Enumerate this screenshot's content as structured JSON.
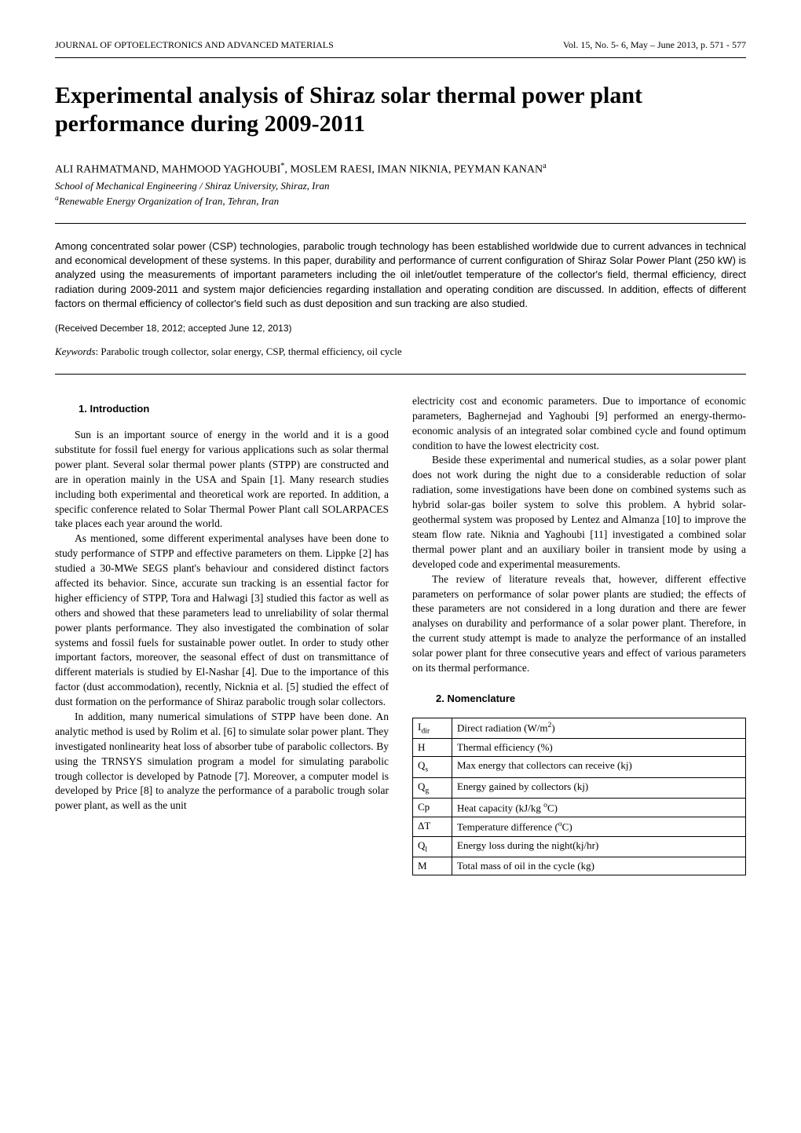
{
  "header": {
    "journal": "JOURNAL OF OPTOELECTRONICS AND ADVANCED MATERIALS",
    "issue": "Vol. 15, No. 5- 6, May – June 2013, p. 571 - 577"
  },
  "title": "Experimental analysis of Shiraz solar thermal power plant performance during 2009-2011",
  "authors_html": "ALI RAHMATMAND, MAHMOOD YAGHOUBI<span class=\"sup\">*</span>, MOSLEM RAESI, IMAN NIKNIA, PEYMAN KANAN<span class=\"sup\">a</span>",
  "affiliations": [
    "School of Mechanical Engineering / Shiraz University, Shiraz, Iran",
    "<span class=\"sup\">a</span>Renewable Energy Organization of Iran, Tehran, Iran"
  ],
  "abstract": "Among concentrated solar power (CSP) technologies, parabolic trough technology has been established worldwide due to current advances in technical and economical development of these systems. In this paper, durability and performance of current configuration of Shiraz Solar Power Plant (250 kW) is analyzed using the measurements of important parameters including the oil inlet/outlet temperature of the collector's field, thermal efficiency, direct radiation during 2009-2011 and system major deficiencies regarding installation and operating condition are discussed. In addition, effects of different factors on thermal efficiency of collector's field such as dust deposition and sun tracking are also studied.",
  "received": "(Received December 18, 2012; accepted June 12, 2013)",
  "keywords_label": "Keywords",
  "keywords": ": Parabolic trough collector, solar energy, CSP, thermal efficiency, oil cycle",
  "section_intro": "1. Introduction",
  "left_paragraphs": [
    "Sun is an important source of energy in the world and it is a good substitute for fossil fuel energy for various applications such as solar thermal power plant. Several solar thermal power plants (STPP) are constructed and are in operation mainly in the USA and Spain [1]. Many research studies including both experimental and theoretical work are reported. In addition, a specific conference related to Solar Thermal Power Plant call SOLARPACES take places each year around the world.",
    "As mentioned, some different experimental analyses have been done to study performance of STPP and effective parameters on them. Lippke [2] has studied a 30-MWe SEGS plant's behaviour and considered distinct factors affected its behavior. Since, accurate sun tracking is an essential factor for higher efficiency of STPP, Tora and Halwagi [3] studied this factor as well as others and showed that these parameters lead to unreliability of solar thermal power plants performance. They also investigated the combination of solar systems and fossil fuels for sustainable power outlet. In order to study other important factors, moreover, the seasonal effect of dust on transmittance of different materials is studied by El-Nashar [4]. Due to the importance of this factor (dust accommodation), recently, Nicknia et al. [5] studied the effect of dust formation on the performance of Shiraz parabolic trough solar collectors.",
    "In addition, many numerical simulations of STPP have been done. An analytic method is used by Rolim et al. [6] to simulate solar power plant. They investigated nonlinearity heat loss of absorber tube of parabolic collectors. By using the TRNSYS simulation program a model for simulating parabolic trough collector is developed by Patnode [7]. Moreover, a computer model is developed by Price [8] to analyze the performance of a parabolic trough solar power plant, as well as the unit"
  ],
  "right_paragraphs": [
    "electricity cost and economic parameters. Due to importance of economic parameters, Baghernejad and Yaghoubi [9] performed an energy-thermo-economic analysis of an integrated solar combined cycle and found optimum condition to have the lowest electricity cost.",
    "Beside these experimental and numerical studies, as a solar power plant does not work during the night due to a considerable reduction of solar radiation, some investigations have been done on combined systems such as hybrid solar-gas boiler system to solve this problem. A hybrid solar-geothermal system was proposed by Lentez and Almanza [10] to improve the steam flow rate. Niknia and Yaghoubi [11] investigated a combined solar thermal power plant and an auxiliary boiler in transient mode by using a developed code and experimental measurements.",
    "The review of literature reveals that, however, different effective parameters on performance of solar power plants are studied; the effects of these parameters are not considered in a long duration and there are fewer analyses on durability and performance of a solar power plant. Therefore, in the current study attempt is made to analyze the performance of an installed solar power plant for three consecutive years and effect of various parameters on its thermal performance."
  ],
  "section_nomenclature": "2. Nomenclature",
  "nomenclature": {
    "columns": [
      "symbol",
      "description"
    ],
    "rows": [
      [
        "I<span class=\"sub\">dir</span>",
        "Direct radiation (W/m<span class=\"sup\">2</span>)"
      ],
      [
        "H",
        "Thermal efficiency (%)"
      ],
      [
        "Q<span class=\"sub\">s</span>",
        "Max energy that collectors can receive (kj)"
      ],
      [
        "Q<span class=\"sub\">g</span>",
        "Energy gained by collectors (kj)"
      ],
      [
        "Cp",
        "Heat capacity (kJ/kg <span class=\"sup\">o</span>C)"
      ],
      [
        "ΔT",
        "Temperature difference (<span class=\"sup\">o</span>C)"
      ],
      [
        "Q<span class=\"sub\">l</span>",
        "Energy loss during the night(kj/hr)"
      ],
      [
        "M",
        "Total mass of oil in the cycle (kg)"
      ]
    ]
  }
}
